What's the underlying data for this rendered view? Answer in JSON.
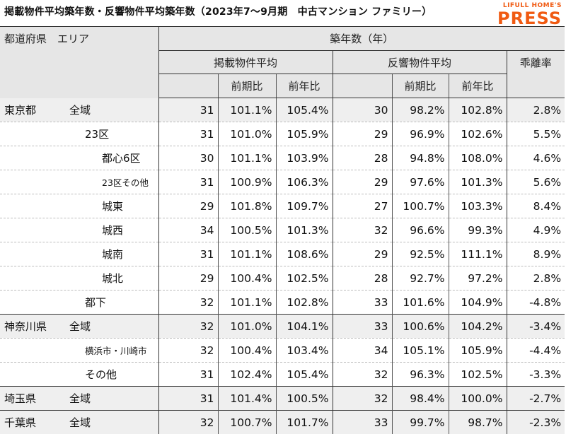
{
  "title": "掲載物件平均築年数・反響物件平均築年数（2023年7～9月期　中古マンション ファミリー）",
  "logo": {
    "line1": "LIFULL HOME'S",
    "line2": "PRESS"
  },
  "header": {
    "pref_area": "都道府県　エリア",
    "age": "築年数（年）",
    "listed_avg": "掲載物件平均",
    "response_avg": "反響物件平均",
    "divergence": "乖離率",
    "qoq": "前期比",
    "yoy": "前年比"
  },
  "rows": [
    {
      "pref": "東京都",
      "area": "全域",
      "indent": 0,
      "listed": "31",
      "l_qoq": "101.1%",
      "l_yoy": "105.4%",
      "resp": "30",
      "r_qoq": "98.2%",
      "r_yoy": "102.8%",
      "div": "2.8%"
    },
    {
      "pref": "",
      "area": "23区",
      "indent": 1,
      "listed": "31",
      "l_qoq": "101.0%",
      "l_yoy": "105.9%",
      "resp": "29",
      "r_qoq": "96.9%",
      "r_yoy": "102.6%",
      "div": "5.5%"
    },
    {
      "pref": "",
      "area": "都心6区",
      "indent": 2,
      "listed": "30",
      "l_qoq": "101.1%",
      "l_yoy": "103.9%",
      "resp": "28",
      "r_qoq": "94.8%",
      "r_yoy": "108.0%",
      "div": "4.6%"
    },
    {
      "pref": "",
      "area": "23区その他",
      "indent": 2,
      "listed": "31",
      "l_qoq": "100.9%",
      "l_yoy": "106.3%",
      "resp": "29",
      "r_qoq": "97.6%",
      "r_yoy": "101.3%",
      "div": "5.6%"
    },
    {
      "pref": "",
      "area": "城東",
      "indent": 2,
      "listed": "29",
      "l_qoq": "101.8%",
      "l_yoy": "109.7%",
      "resp": "27",
      "r_qoq": "100.7%",
      "r_yoy": "103.3%",
      "div": "8.4%"
    },
    {
      "pref": "",
      "area": "城西",
      "indent": 2,
      "listed": "34",
      "l_qoq": "100.5%",
      "l_yoy": "101.3%",
      "resp": "32",
      "r_qoq": "96.6%",
      "r_yoy": "99.3%",
      "div": "4.9%"
    },
    {
      "pref": "",
      "area": "城南",
      "indent": 2,
      "listed": "31",
      "l_qoq": "101.1%",
      "l_yoy": "108.6%",
      "resp": "29",
      "r_qoq": "92.5%",
      "r_yoy": "111.1%",
      "div": "8.9%"
    },
    {
      "pref": "",
      "area": "城北",
      "indent": 2,
      "listed": "29",
      "l_qoq": "100.4%",
      "l_yoy": "102.5%",
      "resp": "28",
      "r_qoq": "92.7%",
      "r_yoy": "97.2%",
      "div": "2.8%"
    },
    {
      "pref": "",
      "area": "都下",
      "indent": 1,
      "listed": "32",
      "l_qoq": "101.1%",
      "l_yoy": "102.8%",
      "resp": "33",
      "r_qoq": "101.6%",
      "r_yoy": "104.9%",
      "div": "-4.8%"
    },
    {
      "pref": "神奈川県",
      "area": "全域",
      "indent": 0,
      "listed": "32",
      "l_qoq": "101.0%",
      "l_yoy": "104.1%",
      "resp": "33",
      "r_qoq": "100.6%",
      "r_yoy": "104.2%",
      "div": "-3.4%"
    },
    {
      "pref": "",
      "area": "横浜市・川崎市",
      "indent": 1,
      "listed": "32",
      "l_qoq": "100.4%",
      "l_yoy": "103.4%",
      "resp": "34",
      "r_qoq": "105.1%",
      "r_yoy": "105.9%",
      "div": "-4.4%"
    },
    {
      "pref": "",
      "area": "その他",
      "indent": 1,
      "listed": "31",
      "l_qoq": "102.4%",
      "l_yoy": "105.4%",
      "resp": "32",
      "r_qoq": "96.3%",
      "r_yoy": "102.5%",
      "div": "-3.3%"
    },
    {
      "pref": "埼玉県",
      "area": "全域",
      "indent": 0,
      "listed": "31",
      "l_qoq": "101.4%",
      "l_yoy": "100.5%",
      "resp": "32",
      "r_qoq": "98.4%",
      "r_yoy": "100.0%",
      "div": "-2.7%"
    },
    {
      "pref": "千葉県",
      "area": "全域",
      "indent": 0,
      "listed": "32",
      "l_qoq": "100.7%",
      "l_yoy": "101.7%",
      "resp": "33",
      "r_qoq": "99.7%",
      "r_yoy": "98.7%",
      "div": "-2.3%"
    }
  ],
  "colors": {
    "brand": "#f05a12",
    "header_bg": "#e6e6e6",
    "highlight_bg": "#efefef"
  }
}
